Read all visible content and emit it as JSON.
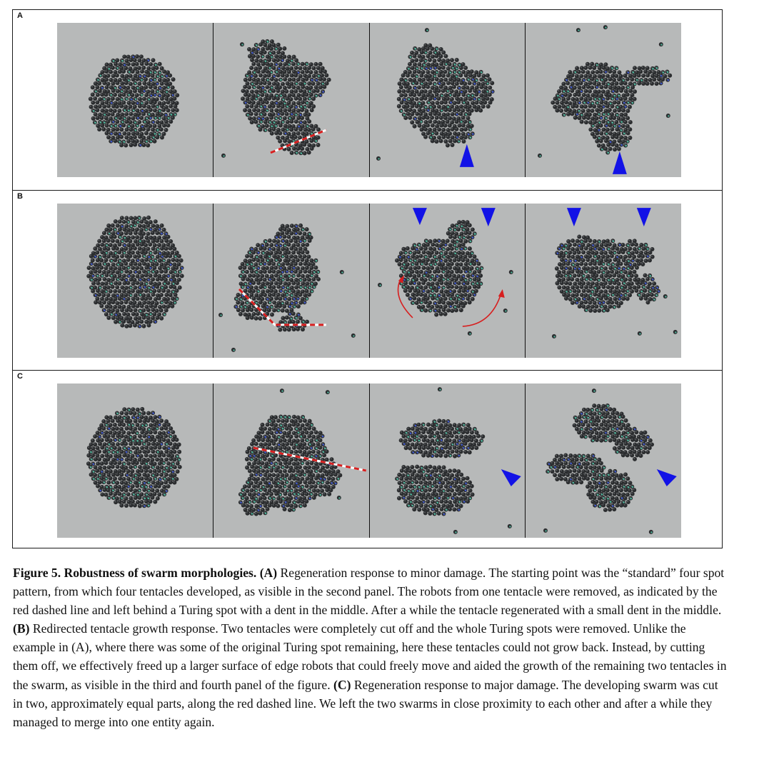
{
  "figure": {
    "rows": [
      {
        "label": "A",
        "panels": [
          {
            "name": "row-a-panel-1",
            "markers": []
          },
          {
            "name": "row-a-panel-2",
            "markers": [
              "cut-line"
            ]
          },
          {
            "name": "row-a-panel-3",
            "markers": [
              "arrowhead-up"
            ]
          },
          {
            "name": "row-a-panel-4",
            "markers": [
              "arrowhead-up"
            ]
          }
        ]
      },
      {
        "label": "B",
        "panels": [
          {
            "name": "row-b-panel-1",
            "markers": []
          },
          {
            "name": "row-b-panel-2",
            "markers": [
              "cut-line"
            ]
          },
          {
            "name": "row-b-panel-3",
            "markers": [
              "arrowhead-down",
              "arrowhead-down",
              "growth-arrow",
              "growth-arrow"
            ]
          },
          {
            "name": "row-b-panel-4",
            "markers": [
              "arrowhead-down",
              "arrowhead-down"
            ]
          }
        ]
      },
      {
        "label": "C",
        "panels": [
          {
            "name": "row-c-panel-1",
            "markers": []
          },
          {
            "name": "row-c-panel-2",
            "markers": [
              "cut-line"
            ]
          },
          {
            "name": "row-c-panel-3",
            "markers": [
              "arrowhead-left"
            ]
          },
          {
            "name": "row-c-panel-4",
            "markers": [
              "arrowhead-left"
            ]
          }
        ]
      }
    ],
    "colors": {
      "background": "#b7b9b9",
      "robot": "#2b2d2f",
      "robot_highlight": "#5a5d60",
      "led_green": "#4fb39a",
      "led_blue": "#3f57c8",
      "cut_line": "#d71f1f",
      "arrowhead": "#1212e6",
      "growth_arrow": "#d71f1f"
    }
  },
  "caption": {
    "figure_label": "Figure 5. Robustness of swarm morphologies.",
    "part_a_label": "(A)",
    "part_a_text": "Regeneration response to minor damage. The starting point was the “standard” four spot pattern, from which four tentacles developed, as visible in the second panel. The robots from one tentacle were removed, as indicated by the red dashed line and left behind a Turing spot with a dent in the middle. After a while the tentacle regenerated with a small dent in the middle.",
    "part_b_label": "(B)",
    "part_b_text": "Redirected tentacle growth response. Two tentacles were completely cut off and the whole Turing spots were removed. Unlike the example in (A), where there was some of the original Turing spot remaining, here these tentacles could not grow back. Instead, by cutting them off, we effectively freed up a larger surface of edge robots that could freely move and aided the growth of the remaining two tentacles in the swarm, as visible in the third and fourth panel of the figure.",
    "part_c_label": "(C)",
    "part_c_text": "Regeneration response to major damage. The developing swarm was cut in two, approximately equal parts, along the red dashed line. We left the two swarms in close proximity to each other and after a while they managed to merge into one entity again."
  }
}
